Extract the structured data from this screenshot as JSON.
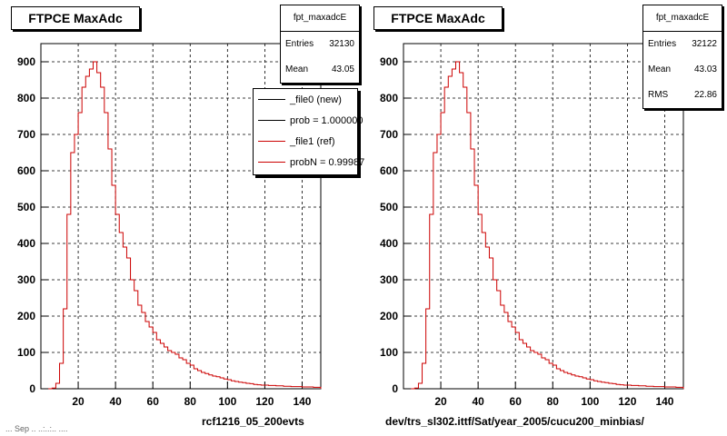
{
  "panels": [
    {
      "title": "FTPCE MaxAdc",
      "stats": {
        "name": "fpt_maxadcE",
        "rows": [
          {
            "label": "Entries",
            "value": "32130"
          },
          {
            "label": "Mean",
            "value": "43.05"
          }
        ]
      },
      "legend": [
        {
          "label": "_file0 (new)",
          "color": "#000000"
        },
        {
          "label": "prob = 1.000000",
          "color": "#000000"
        },
        {
          "label": "_file1 (ref)",
          "color": "#cc0000"
        },
        {
          "label": "probN = 0.99987",
          "color": "#cc0000"
        }
      ],
      "footer": "rcf1216_05_200evts"
    },
    {
      "title": "FTPCE MaxAdc",
      "stats": {
        "name": "fpt_maxadcE",
        "rows": [
          {
            "label": "Entries",
            "value": "32122"
          },
          {
            "label": "Mean",
            "value": "43.03"
          },
          {
            "label": "RMS",
            "value": "22.86"
          }
        ]
      },
      "footer": "dev/trs_sl302.ittf/Sat/year_2005/cucu200_minbias/"
    }
  ],
  "footer_date": "... Sep .. ..:..:.. ....",
  "colors": {
    "histogram": "#cc0000",
    "axis": "#000000",
    "grid": "#000000"
  },
  "chart_data": [
    {
      "type": "histogram",
      "title": "FTPCE MaxAdc",
      "xlim": [
        0,
        150
      ],
      "ylim": [
        0,
        950
      ],
      "xticks": [
        20,
        40,
        60,
        80,
        100,
        120,
        140
      ],
      "yticks": [
        0,
        100,
        200,
        300,
        400,
        500,
        600,
        700,
        800,
        900
      ],
      "grid": true,
      "legend_position": "top-right",
      "series": [
        {
          "name": "_file1 (ref)",
          "x": [
            5,
            7,
            9,
            11,
            13,
            15,
            17,
            19,
            21,
            23,
            25,
            27,
            29,
            31,
            33,
            35,
            37,
            39,
            41,
            43,
            45,
            47,
            49,
            51,
            53,
            55,
            57,
            59,
            61,
            63,
            65,
            67,
            69,
            71,
            73,
            75,
            77,
            79,
            81,
            83,
            85,
            87,
            89,
            91,
            93,
            95,
            97,
            99,
            101,
            103,
            105,
            107,
            109,
            111,
            113,
            115,
            117,
            119,
            121,
            123,
            125,
            127,
            129,
            131,
            133,
            135,
            137,
            139,
            141,
            143,
            145,
            147,
            149
          ],
          "y": [
            0,
            2,
            15,
            70,
            220,
            480,
            650,
            700,
            760,
            830,
            860,
            880,
            900,
            870,
            830,
            760,
            660,
            560,
            480,
            430,
            390,
            360,
            300,
            270,
            230,
            210,
            185,
            170,
            155,
            135,
            125,
            115,
            105,
            100,
            95,
            85,
            80,
            70,
            65,
            55,
            50,
            45,
            42,
            38,
            35,
            33,
            30,
            27,
            25,
            22,
            20,
            18,
            17,
            15,
            14,
            12,
            11,
            10,
            10,
            9,
            9,
            8,
            8,
            7,
            7,
            6,
            6,
            6,
            5,
            5,
            5,
            4,
            4
          ]
        }
      ]
    },
    {
      "type": "histogram",
      "title": "FTPCE MaxAdc",
      "xlim": [
        0,
        150
      ],
      "ylim": [
        0,
        950
      ],
      "xticks": [
        20,
        40,
        60,
        80,
        100,
        120,
        140
      ],
      "yticks": [
        0,
        100,
        200,
        300,
        400,
        500,
        600,
        700,
        800,
        900
      ],
      "grid": true,
      "series": [
        {
          "name": "fpt_maxadcE",
          "x": [
            5,
            7,
            9,
            11,
            13,
            15,
            17,
            19,
            21,
            23,
            25,
            27,
            29,
            31,
            33,
            35,
            37,
            39,
            41,
            43,
            45,
            47,
            49,
            51,
            53,
            55,
            57,
            59,
            61,
            63,
            65,
            67,
            69,
            71,
            73,
            75,
            77,
            79,
            81,
            83,
            85,
            87,
            89,
            91,
            93,
            95,
            97,
            99,
            101,
            103,
            105,
            107,
            109,
            111,
            113,
            115,
            117,
            119,
            121,
            123,
            125,
            127,
            129,
            131,
            133,
            135,
            137,
            139,
            141,
            143,
            145,
            147,
            149
          ],
          "y": [
            0,
            2,
            15,
            70,
            220,
            480,
            650,
            700,
            760,
            830,
            860,
            880,
            900,
            870,
            830,
            760,
            660,
            560,
            480,
            430,
            390,
            360,
            300,
            270,
            230,
            210,
            185,
            170,
            155,
            135,
            125,
            115,
            105,
            100,
            95,
            85,
            80,
            70,
            65,
            55,
            50,
            45,
            42,
            38,
            35,
            33,
            30,
            27,
            25,
            22,
            20,
            18,
            17,
            15,
            14,
            12,
            11,
            10,
            10,
            9,
            9,
            8,
            8,
            7,
            7,
            6,
            6,
            6,
            5,
            5,
            5,
            4,
            4
          ]
        }
      ]
    }
  ]
}
